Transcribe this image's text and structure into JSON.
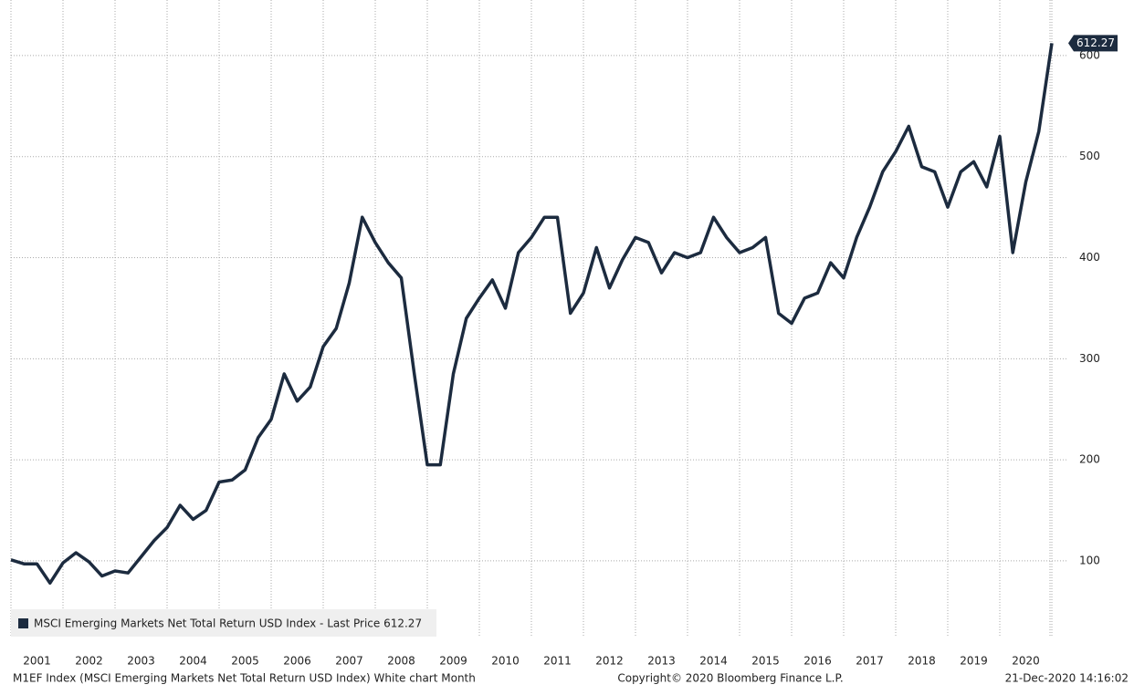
{
  "chart_data": {
    "type": "line",
    "categories": [
      null,
      null,
      "2001",
      null,
      null,
      null,
      "2002",
      null,
      null,
      null,
      "2003",
      null,
      null,
      null,
      "2004",
      null,
      null,
      null,
      "2005",
      null,
      null,
      null,
      "2006",
      null,
      null,
      null,
      "2007",
      null,
      null,
      null,
      "2008",
      null,
      null,
      null,
      "2009",
      null,
      null,
      null,
      "2010",
      null,
      null,
      null,
      "2011",
      null,
      null,
      null,
      "2012",
      null,
      null,
      null,
      "2013",
      null,
      null,
      null,
      "2014",
      null,
      null,
      null,
      "2015",
      null,
      null,
      null,
      "2016",
      null,
      null,
      null,
      "2017",
      null,
      null,
      null,
      "2018",
      null,
      null,
      null,
      "2019",
      null,
      null,
      null,
      "2020",
      null,
      null
    ],
    "series": [
      {
        "name": "MSCI Emerging Markets Net Total Return USD Index - Last Price 612.27",
        "color": "#1c2b3f",
        "values": [
          101,
          97,
          97,
          78,
          98,
          108,
          99,
          85,
          90,
          88,
          104,
          120,
          133,
          155,
          141,
          150,
          178,
          180,
          190,
          222,
          240,
          285,
          258,
          272,
          312,
          330,
          375,
          440,
          415,
          395,
          380,
          285,
          195,
          195,
          285,
          340,
          360,
          378,
          350,
          405,
          420,
          440,
          440,
          345,
          365,
          410,
          370,
          398,
          420,
          415,
          385,
          405,
          400,
          405,
          440,
          420,
          405,
          410,
          420,
          345,
          335,
          360,
          365,
          395,
          380,
          420,
          450,
          485,
          505,
          530,
          490,
          485,
          450,
          485,
          495,
          470,
          520,
          405,
          475,
          525,
          612.27
        ]
      }
    ],
    "ylim": [
      25,
      655
    ],
    "yticks": [
      100,
      200,
      300,
      400,
      500,
      600
    ],
    "grid": true,
    "footer_left": "M1EF Index (MSCI Emerging Markets Net Total Return USD Index) White chart  Month",
    "footer_center": "Copyright© 2020 Bloomberg Finance L.P.",
    "footer_right": "21-Dec-2020 14:16:02"
  }
}
